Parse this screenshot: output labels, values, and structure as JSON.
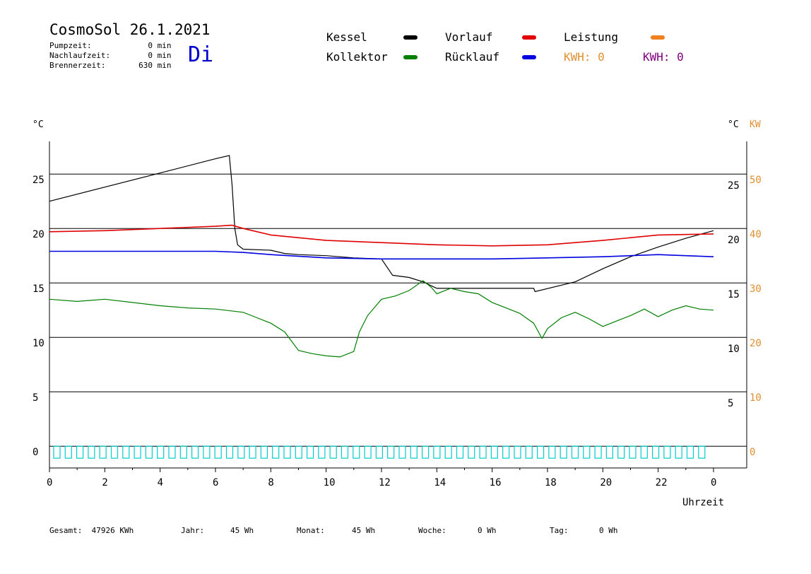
{
  "header": {
    "title": "CosmoSol 26.1.2021",
    "day": "Di",
    "stats": [
      {
        "label": "Pumpzeit:",
        "value": "0",
        "unit": "min"
      },
      {
        "label": "Nachlaufzeit:",
        "value": "0",
        "unit": "min"
      },
      {
        "label": "Brennerzeit:",
        "value": "630",
        "unit": "min"
      }
    ]
  },
  "legend": {
    "kessel": {
      "label": "Kessel",
      "color": "#000000"
    },
    "vorlauf": {
      "label": "Vorlauf",
      "color": "#e00000"
    },
    "leistung": {
      "label": "Leistung",
      "color": "#f08020"
    },
    "kollektor": {
      "label": "Kollektor",
      "color": "#008000"
    },
    "ruecklauf": {
      "label": "Rücklauf",
      "color": "#0000e0"
    },
    "kwh1": {
      "label": "KWH: 0",
      "color": "#e09030"
    },
    "kwh2": {
      "label": "KWH: 0",
      "color": "#800080"
    }
  },
  "chart_data": {
    "type": "line",
    "xlabel": "Uhrzeit",
    "ylabel_left": "°C",
    "ylabel_right_1": "°C",
    "ylabel_right_2": "KW",
    "xlim": [
      0,
      24
    ],
    "ylim": [
      -2,
      28
    ],
    "x_ticks": [
      "0",
      "2",
      "4",
      "6",
      "8",
      "10",
      "12",
      "14",
      "16",
      "18",
      "20",
      "22",
      "0"
    ],
    "y_ticks_left": [
      "0",
      "5",
      "10",
      "15",
      "20",
      "25"
    ],
    "y_ticks_right_1": [
      "5",
      "10",
      "15",
      "20",
      "25"
    ],
    "y_ticks_right_2": [
      "0",
      "10",
      "20",
      "30",
      "40",
      "50"
    ],
    "series": [
      {
        "name": "Kessel",
        "color": "#000000",
        "x": [
          0,
          2,
          4,
          6,
          6.5,
          6.6,
          6.7,
          6.8,
          7,
          8,
          8.5,
          9,
          10,
          11,
          12,
          12.4,
          13,
          13.5,
          14,
          16,
          17.5,
          17.55,
          19,
          20,
          21,
          22,
          23,
          24
        ],
        "y": [
          22.5,
          23.8,
          25.1,
          26.4,
          26.7,
          24,
          20,
          18.5,
          18.1,
          18.0,
          17.7,
          17.6,
          17.5,
          17.3,
          17.2,
          15.7,
          15.5,
          15.1,
          14.5,
          14.5,
          14.5,
          14.2,
          15.1,
          16.3,
          17.4,
          18.3,
          19.1,
          19.8
        ]
      },
      {
        "name": "Vorlauf",
        "color": "#e00000",
        "x": [
          0,
          2,
          4,
          6,
          6.6,
          7,
          8,
          10,
          12,
          14,
          16,
          18,
          20,
          22,
          24
        ],
        "y": [
          19.7,
          19.8,
          20.0,
          20.2,
          20.3,
          20.0,
          19.4,
          18.9,
          18.7,
          18.5,
          18.4,
          18.5,
          18.9,
          19.4,
          19.5
        ]
      },
      {
        "name": "Rücklauf",
        "color": "#0000e0",
        "x": [
          0,
          2,
          4,
          6,
          7,
          8,
          10,
          12,
          14,
          16,
          18,
          20,
          22,
          24
        ],
        "y": [
          17.9,
          17.9,
          17.9,
          17.9,
          17.8,
          17.6,
          17.3,
          17.2,
          17.2,
          17.2,
          17.3,
          17.4,
          17.6,
          17.4
        ]
      },
      {
        "name": "Kollektor",
        "color": "#008000",
        "x": [
          0,
          1,
          2,
          3,
          4,
          5,
          6,
          7,
          7.5,
          8,
          8.5,
          9,
          9.5,
          10,
          10.5,
          11,
          11.2,
          11.5,
          12,
          12.5,
          13,
          13.5,
          13.8,
          14,
          14.5,
          15,
          15.5,
          16,
          16.5,
          17,
          17.5,
          17.8,
          18,
          18.5,
          19,
          19.5,
          20,
          20.5,
          21,
          21.5,
          22,
          22.5,
          23,
          23.5,
          24
        ],
        "y": [
          13.5,
          13.3,
          13.5,
          13.2,
          12.9,
          12.7,
          12.6,
          12.3,
          11.8,
          11.3,
          10.5,
          8.8,
          8.5,
          8.3,
          8.2,
          8.7,
          10.5,
          12.0,
          13.5,
          13.8,
          14.3,
          15.2,
          14.6,
          14.0,
          14.5,
          14.2,
          14.0,
          13.2,
          12.7,
          12.2,
          11.3,
          9.9,
          10.8,
          11.8,
          12.3,
          11.7,
          11.0,
          11.5,
          12.0,
          12.6,
          11.9,
          12.5,
          12.9,
          12.6,
          12.5
        ]
      }
    ]
  },
  "footer": {
    "gesamt": {
      "label": "Gesamt:",
      "value": "47926 KWh"
    },
    "jahr": {
      "label": "Jahr:",
      "value": "45 Wh"
    },
    "monat": {
      "label": "Monat:",
      "value": "45 Wh"
    },
    "woche": {
      "label": "Woche:",
      "value": "0 Wh"
    },
    "tag": {
      "label": "Tag:",
      "value": "0 Wh"
    }
  }
}
